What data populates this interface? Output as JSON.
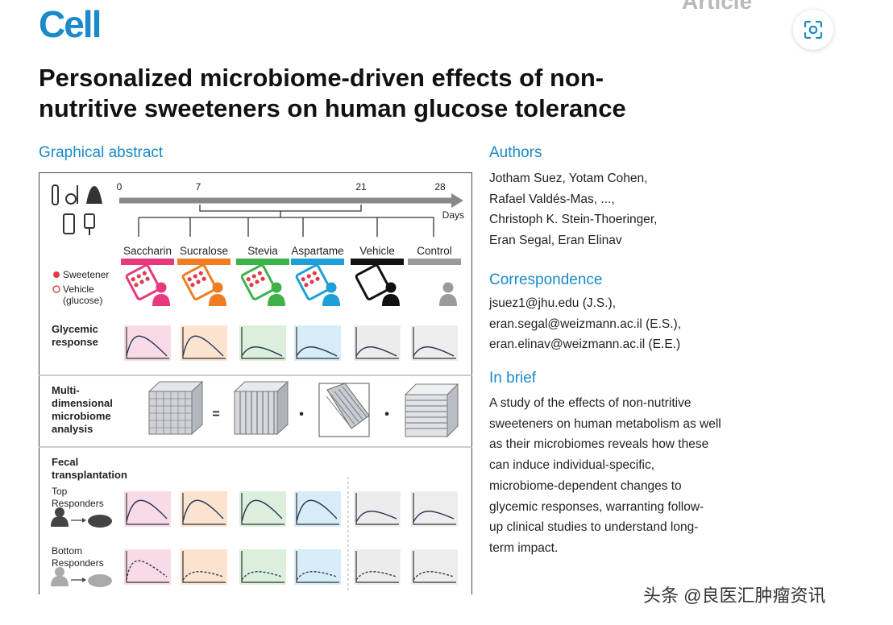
{
  "header": {
    "journal": "Cell",
    "article_type": "Article",
    "title_lines": [
      "Personalized microbiome-driven effects of non-",
      "nutritive sweeteners on human glucose tolerance"
    ]
  },
  "graphical_abstract": {
    "heading": "Graphical abstract",
    "timeline": {
      "days": [
        "0",
        "7",
        "21",
        "28"
      ],
      "unit": "Days"
    },
    "groups": [
      {
        "label": "Saccharin",
        "color": "#e8397e"
      },
      {
        "label": "Sucralose",
        "color": "#ef7d22"
      },
      {
        "label": "Stevia",
        "color": "#3cb249"
      },
      {
        "label": "Aspartame",
        "color": "#1e9fd8"
      },
      {
        "label": "Vehicle",
        "color": "#111111"
      },
      {
        "label": "Control",
        "color": "#9a9a9a"
      }
    ],
    "legend": {
      "sweetener": "Sweetener",
      "vehicle_lines": [
        "Vehicle",
        "(glucose)"
      ]
    },
    "glycemic_lines": [
      "Glycemic",
      "response"
    ],
    "multi_lines": [
      "Multi-",
      "dimensional",
      "microbiome",
      "analysis"
    ],
    "fecal_lines": [
      "Fecal",
      "transplantation"
    ],
    "top_lines": [
      "Top",
      "Responders"
    ],
    "bottom_lines": [
      "Bottom",
      "Responders"
    ],
    "operators": [
      "=",
      "•",
      "•"
    ]
  },
  "authors": {
    "heading": "Authors",
    "lines": [
      "Jotham Suez, Yotam Cohen,",
      "Rafael Valdés-Mas, ...,",
      "Christoph K. Stein-Thoeringer,",
      "Eran Segal, Eran Elinav"
    ]
  },
  "correspondence": {
    "heading": "Correspondence",
    "lines": [
      "jsuez1@jhu.edu (J.S.),",
      "eran.segal@weizmann.ac.il (E.S.),",
      "eran.elinav@weizmann.ac.il (E.E.)"
    ]
  },
  "in_brief": {
    "heading": "In brief",
    "lines": [
      "A study of the effects of non-nutritive",
      "sweeteners on human metabolism as well",
      "as their microbiomes reveals how these",
      "can induce individual-specific,",
      "microbiome-dependent changes to",
      "glycemic responses, warranting follow-",
      "up clinical studies to understand long-",
      "term impact."
    ]
  },
  "watermark": "头条 @良医汇肿瘤资讯"
}
